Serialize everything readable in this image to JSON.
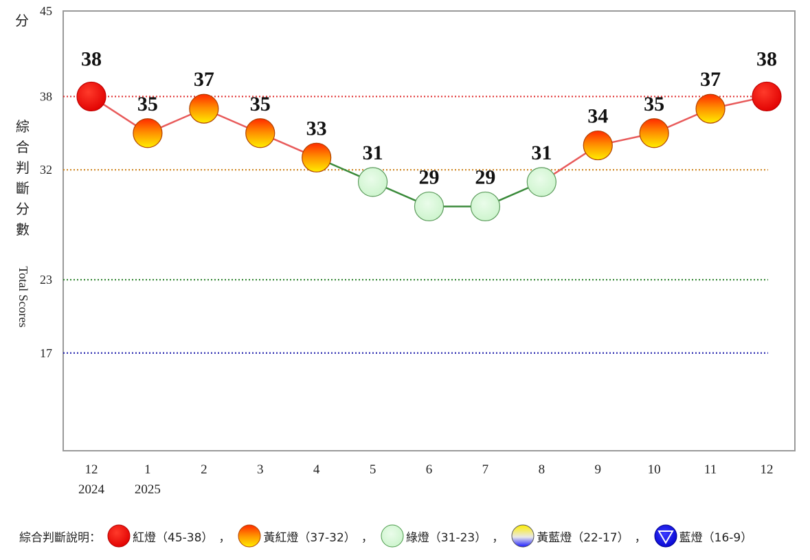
{
  "chart_data": {
    "type": "line",
    "y_unit_label": "分",
    "ylabel_zh": [
      "綜",
      "合",
      "判",
      "斷",
      "分",
      "數"
    ],
    "ylabel_en": "Total Scores",
    "ylim": [
      9,
      45
    ],
    "yticks": [
      45,
      38,
      32,
      23,
      17
    ],
    "reference_lines": [
      {
        "value": 38,
        "color": "#e03030"
      },
      {
        "value": 32,
        "color": "#d08a2a"
      },
      {
        "value": 23,
        "color": "#3a8a3a"
      },
      {
        "value": 17,
        "color": "#2a2ab0"
      }
    ],
    "categories": [
      "12",
      "1",
      "2",
      "3",
      "4",
      "5",
      "6",
      "7",
      "8",
      "9",
      "10",
      "11",
      "12"
    ],
    "year_labels": [
      "2024",
      "2025",
      "",
      "",
      "",
      "",
      "",
      "",
      "",
      "",
      "",
      "",
      ""
    ],
    "values": [
      38,
      35,
      37,
      35,
      33,
      31,
      29,
      29,
      31,
      34,
      35,
      37,
      38
    ],
    "signals": [
      "red",
      "yellow-red",
      "yellow-red",
      "yellow-red",
      "yellow-red",
      "green",
      "green",
      "green",
      "green",
      "yellow-red",
      "yellow-red",
      "yellow-red",
      "red"
    ]
  },
  "legend": {
    "title": "綜合判斷說明：",
    "items": [
      {
        "icon": "red-light-icon",
        "label": "紅燈（45-38）"
      },
      {
        "icon": "yellow-red-light-icon",
        "label": "黃紅燈（37-32）"
      },
      {
        "icon": "green-light-icon",
        "label": "綠燈（31-23）"
      },
      {
        "icon": "yellow-blue-light-icon",
        "label": "黃藍燈（22-17）"
      },
      {
        "icon": "blue-light-icon",
        "label": "藍燈（16-9）"
      }
    ],
    "separator": "，"
  }
}
